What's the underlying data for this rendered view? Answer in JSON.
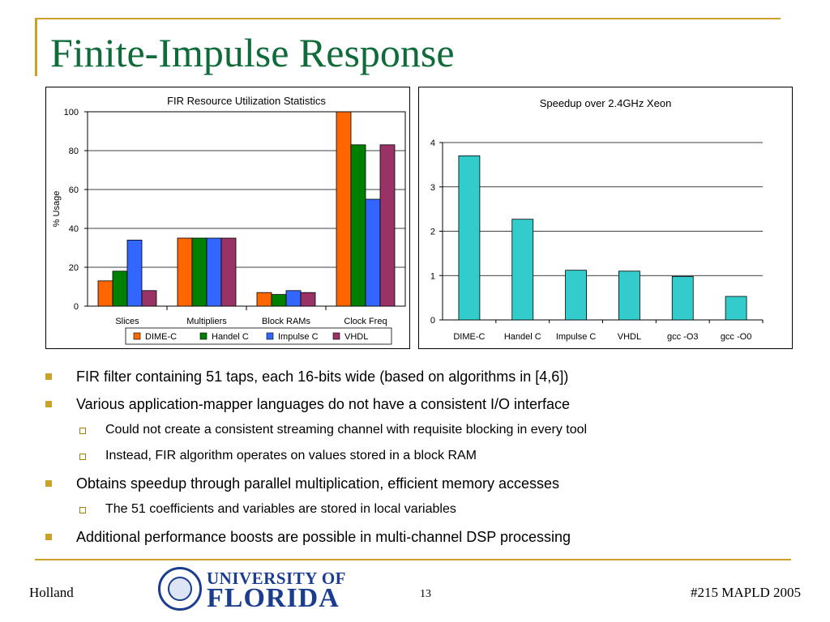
{
  "slide": {
    "title": "Finite-Impulse Response",
    "accent_gold": "#c9a227",
    "title_color": "#0f6b3a",
    "bullets": [
      {
        "level": 1,
        "text": "FIR filter containing 51 taps, each 16-bits wide (based on algorithms in [4,6])"
      },
      {
        "level": 1,
        "text": "Various application-mapper languages do not have a consistent I/O interface"
      },
      {
        "level": 2,
        "text": "Could not create a consistent streaming channel with requisite blocking in every tool"
      },
      {
        "level": 2,
        "text": "Instead, FIR algorithm operates on values stored in a block RAM"
      },
      {
        "level": 1,
        "text": "Obtains speedup through parallel multiplication, efficient memory accesses"
      },
      {
        "level": 2,
        "text": "The 51 coefficients and variables are stored in local variables"
      },
      {
        "level": 1,
        "text": "Additional performance boosts are possible in multi-channel DSP processing"
      }
    ],
    "footer": {
      "left": "Holland",
      "page": "13",
      "right": "#215 MAPLD 2005",
      "logo_line1": "UNIVERSITY OF",
      "logo_line2": "FLORIDA",
      "logo_color": "#1b3d8f"
    }
  },
  "chart_data": [
    {
      "type": "bar",
      "title": "FIR Resource Utilization Statistics",
      "xlabel": "",
      "ylabel": "% Usage",
      "ylim": [
        0,
        100
      ],
      "yticks": [
        0,
        20,
        40,
        60,
        80,
        100
      ],
      "grid": true,
      "legend": "bottom",
      "categories": [
        "Slices",
        "Multipliers",
        "Block RAMs",
        "Clock Freq"
      ],
      "series": [
        {
          "name": "DIME-C",
          "color": "#ff6600",
          "values": [
            13,
            35,
            7,
            100
          ]
        },
        {
          "name": "Handel C",
          "color": "#008000",
          "values": [
            18,
            35,
            6,
            83
          ]
        },
        {
          "name": "Impulse C",
          "color": "#3366ff",
          "values": [
            34,
            35,
            8,
            55
          ]
        },
        {
          "name": "VHDL",
          "color": "#993366",
          "values": [
            8,
            35,
            7,
            83
          ]
        }
      ]
    },
    {
      "type": "bar",
      "title": "Speedup over 2.4GHz Xeon",
      "xlabel": "",
      "ylabel": "",
      "ylim": [
        0,
        4
      ],
      "yticks": [
        0,
        1,
        2,
        3,
        4
      ],
      "grid": true,
      "categories": [
        "DIME-C",
        "Handel C",
        "Impulse C",
        "VHDL",
        "gcc -O3",
        "gcc -O0"
      ],
      "values": [
        3.7,
        2.27,
        1.12,
        1.1,
        0.98,
        0.53
      ],
      "color": "#33cccc"
    }
  ]
}
